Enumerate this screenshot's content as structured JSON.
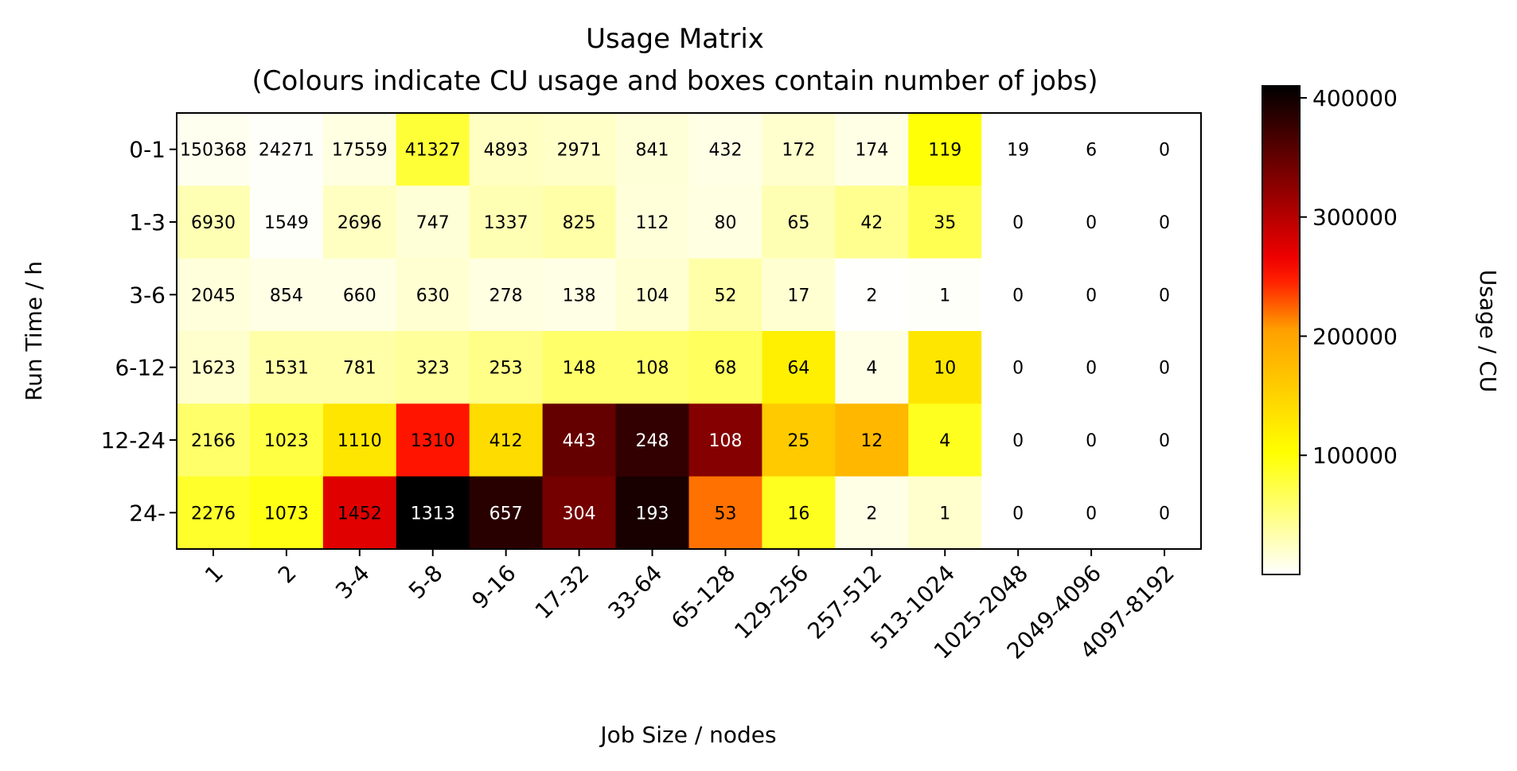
{
  "chart_data": {
    "type": "heatmap",
    "title": "Usage Matrix",
    "subtitle": "(Colours indicate CU usage and boxes contain number of jobs)",
    "xlabel": "Job Size / nodes",
    "ylabel": "Run Time / h",
    "colorbar_label": "Usage / CU",
    "colormap": "hot_r",
    "color_range": [
      0,
      410000
    ],
    "colorbar_ticks": [
      100000,
      200000,
      300000,
      400000
    ],
    "colorbar_tick_labels": [
      "100000",
      "200000",
      "300000",
      "400000"
    ],
    "x_categories": [
      "1",
      "2",
      "3-4",
      "5-8",
      "9-16",
      "17-32",
      "33-64",
      "65-128",
      "129-256",
      "257-512",
      "513-1024",
      "1025-2048",
      "2049-4096",
      "4097-8192"
    ],
    "y_categories": [
      "0-1",
      "1-3",
      "3-6",
      "6-12",
      "12-24",
      "24-"
    ],
    "job_counts": [
      [
        "150368",
        "24271",
        "17559",
        "41327",
        "4893",
        "2971",
        "841",
        "432",
        "172",
        "174",
        "119",
        "19",
        "6",
        "0"
      ],
      [
        "6930",
        "1549",
        "2696",
        "747",
        "1337",
        "825",
        "112",
        "80",
        "65",
        "42",
        "35",
        "0",
        "0",
        "0"
      ],
      [
        "2045",
        "854",
        "660",
        "630",
        "278",
        "138",
        "104",
        "52",
        "17",
        "2",
        "1",
        "0",
        "0",
        "0"
      ],
      [
        "1623",
        "1531",
        "781",
        "323",
        "253",
        "148",
        "108",
        "68",
        "64",
        "4",
        "10",
        "0",
        "0",
        "0"
      ],
      [
        "2166",
        "1023",
        "1110",
        "1310",
        "412",
        "443",
        "248",
        "108",
        "25",
        "12",
        "4",
        "0",
        "0",
        "0"
      ],
      [
        "2276",
        "1073",
        "1452",
        "1313",
        "657",
        "304",
        "193",
        "53",
        "16",
        "2",
        "1",
        "0",
        "0",
        "0"
      ]
    ],
    "usage_cu": [
      [
        6000,
        2000,
        12000,
        80000,
        25000,
        22000,
        16000,
        10000,
        20000,
        10000,
        100000,
        0,
        0,
        0
      ],
      [
        30000,
        2000,
        25000,
        16000,
        30000,
        35000,
        15000,
        12000,
        30000,
        45000,
        70000,
        0,
        0,
        0
      ],
      [
        14000,
        10000,
        10000,
        18000,
        12000,
        10000,
        18000,
        35000,
        18000,
        1000,
        2000,
        0,
        0,
        0
      ],
      [
        20000,
        35000,
        35000,
        40000,
        48000,
        60000,
        60000,
        65000,
        120000,
        10000,
        130000,
        0,
        0,
        0
      ],
      [
        60000,
        75000,
        130000,
        250000,
        140000,
        350000,
        380000,
        330000,
        160000,
        180000,
        90000,
        0,
        0,
        0
      ],
      [
        85000,
        95000,
        275000,
        410000,
        385000,
        340000,
        395000,
        220000,
        90000,
        10000,
        20000,
        0,
        0,
        0
      ]
    ]
  }
}
